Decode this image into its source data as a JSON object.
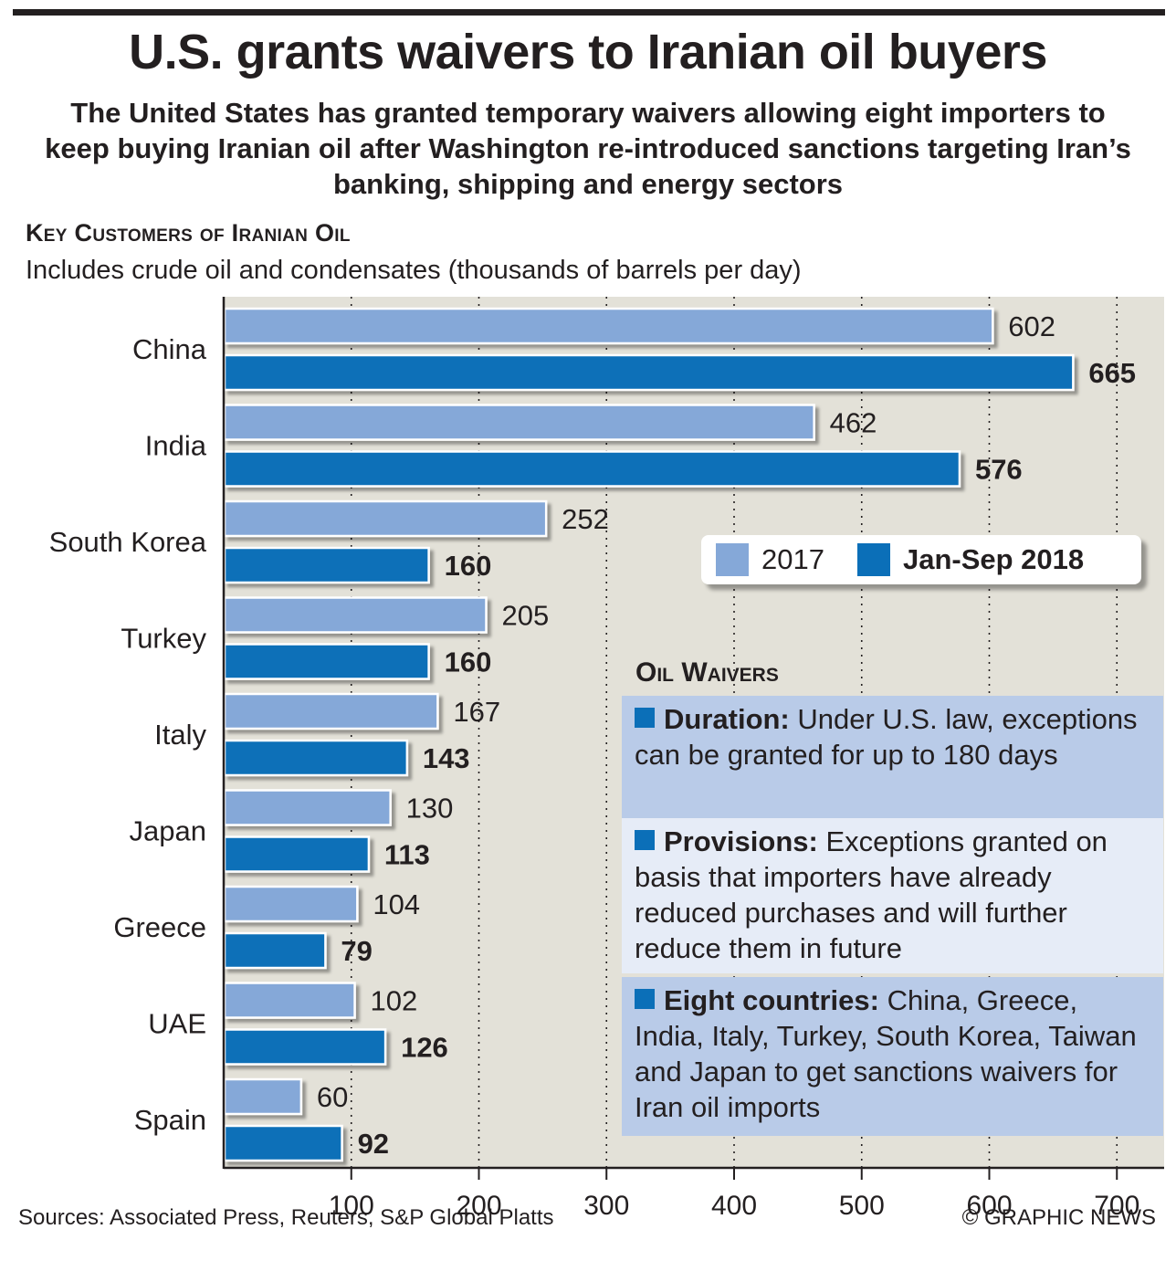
{
  "title": "U.S. grants waivers to Iranian oil buyers",
  "subtitle": "The United States has granted temporary waivers allowing eight importers to keep buying Iranian oil after Washington re-introduced sanctions targeting Iran’s banking, shipping and energy sectors",
  "section_title": "Key Customers of Iranian Oil",
  "section_subtitle": "Includes crude oil and condensates (thousands of barrels per day)",
  "colors": {
    "series_2017": "#85a8d8",
    "series_2018": "#0b6fb8",
    "plot_bg": "#e3e1d8"
  },
  "chart_data": {
    "type": "bar",
    "orientation": "horizontal",
    "categories": [
      "China",
      "India",
      "South Korea",
      "Turkey",
      "Italy",
      "Japan",
      "Greece",
      "UAE",
      "Spain"
    ],
    "series": [
      {
        "name": "2017",
        "values": [
          602,
          462,
          252,
          205,
          167,
          130,
          104,
          102,
          60
        ]
      },
      {
        "name": "Jan-Sep 2018",
        "values": [
          665,
          576,
          160,
          160,
          143,
          113,
          79,
          126,
          92
        ]
      }
    ],
    "xlim": [
      0,
      740
    ],
    "xticks": [
      100,
      200,
      300,
      400,
      500,
      600,
      700
    ],
    "grid": "vertical dotted",
    "legend_position": "right"
  },
  "waivers": {
    "title": "Oil Waivers",
    "items": [
      {
        "label": "Duration:",
        "text": " Under U.S. law, exceptions can be granted for up to 180 days"
      },
      {
        "label": "Provisions:",
        "text": " Exceptions granted on basis that importers have already reduced purchases and will further reduce them in future"
      },
      {
        "label": "Eight countries:",
        "text": " China, Greece, India, Italy, Turkey, South Korea, Taiwan and Japan to get sanctions waivers for Iran oil imports"
      }
    ]
  },
  "footer": {
    "sources": "Sources: Associated Press, Reuters, S&P Global Platts",
    "credit": "© GRAPHIC NEWS"
  }
}
